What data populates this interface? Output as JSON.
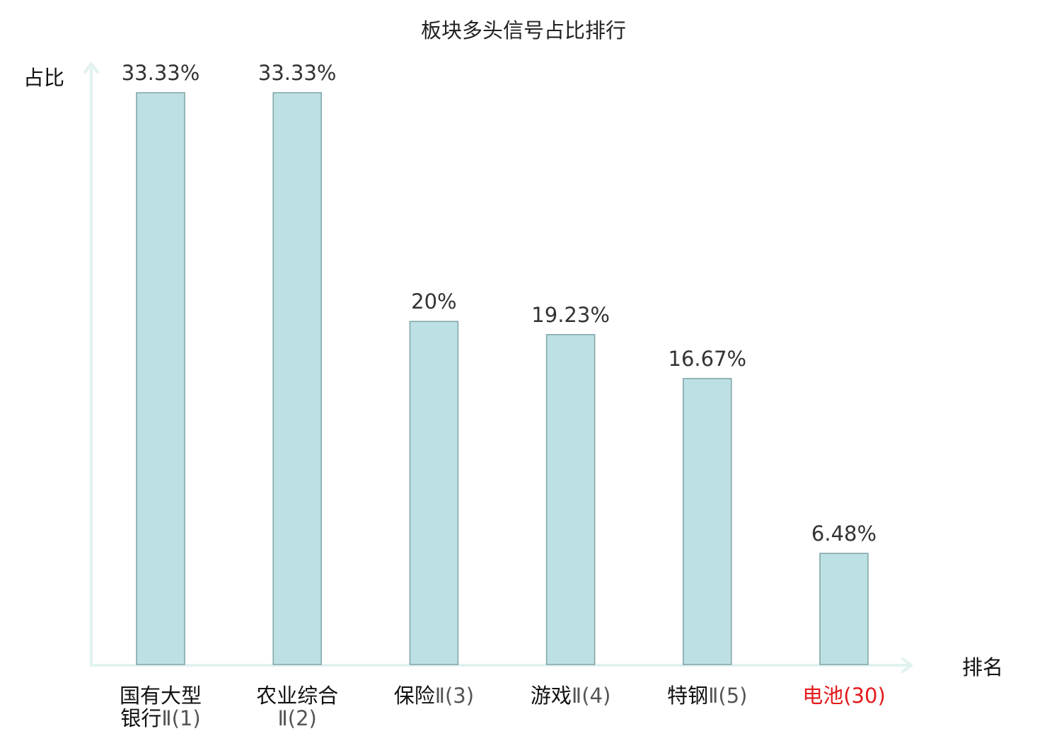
{
  "chart_data": {
    "type": "bar",
    "title": "板块多头信号占比排行",
    "ylabel": "占比",
    "xlabel": "排名",
    "categories": [
      {
        "name_lines": [
          "国有大型",
          "银行"
        ],
        "rank_suffix": "Ⅱ(1)",
        "highlight": false
      },
      {
        "name_lines": [
          "农业综合",
          ""
        ],
        "rank_suffix": "Ⅱ(2)",
        "highlight": false
      },
      {
        "name_lines": [
          "保险"
        ],
        "rank_suffix": "Ⅱ(3)",
        "highlight": false
      },
      {
        "name_lines": [
          "游戏"
        ],
        "rank_suffix": "Ⅱ(4)",
        "highlight": false
      },
      {
        "name_lines": [
          "特钢"
        ],
        "rank_suffix": "Ⅱ(5)",
        "highlight": false
      },
      {
        "name_lines": [
          "电池"
        ],
        "rank_suffix": "(30)",
        "highlight": true
      }
    ],
    "values": [
      33.33,
      33.33,
      20,
      19.23,
      16.67,
      6.48
    ],
    "value_labels": [
      "33.33%",
      "33.33%",
      "20%",
      "19.23%",
      "16.67%",
      "6.48%"
    ],
    "ylim": [
      0,
      33.33
    ],
    "grid": false,
    "colors": {
      "bar_fill": "#bce0e3",
      "bar_stroke": "#7fa4a6",
      "axis": "#e1f2f0",
      "highlight": "#e31a1c"
    }
  }
}
